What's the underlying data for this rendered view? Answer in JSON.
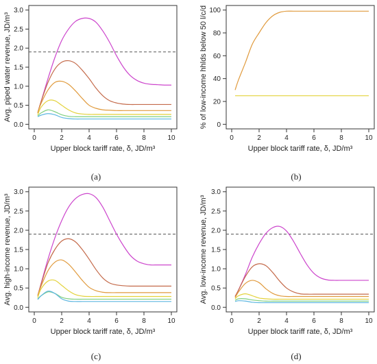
{
  "chart_data": [
    {
      "panel": "a",
      "caption": "(a)",
      "type": "line",
      "xlabel": "Upper block tariff rate, δ, JD/m³",
      "ylabel": "Avg. piped water revenue, JD/m³",
      "xlim": [
        0,
        10
      ],
      "ylim": [
        0,
        3.0
      ],
      "xticks": [
        "0",
        "2",
        "4",
        "6",
        "8",
        "10"
      ],
      "yticks": [
        "0.0",
        "0.5",
        "1.0",
        "1.5",
        "2.0",
        "2.5",
        "3.0"
      ],
      "reference_line": 1.9,
      "x": [
        0.25,
        0.5,
        1,
        1.5,
        2,
        2.5,
        3,
        3.5,
        4,
        4.5,
        5,
        5.5,
        6,
        6.5,
        7,
        7.5,
        8,
        8.5,
        9,
        9.5,
        10
      ],
      "series": [
        {
          "color": "#cc44cc",
          "values": [
            0.3,
            0.6,
            1.2,
            1.75,
            2.2,
            2.5,
            2.7,
            2.78,
            2.78,
            2.68,
            2.45,
            2.15,
            1.8,
            1.5,
            1.28,
            1.15,
            1.08,
            1.05,
            1.04,
            1.03,
            1.03
          ]
        },
        {
          "color": "#c46a4a",
          "values": [
            0.3,
            0.6,
            1.1,
            1.45,
            1.63,
            1.67,
            1.6,
            1.42,
            1.2,
            0.95,
            0.75,
            0.62,
            0.56,
            0.53,
            0.52,
            0.52,
            0.52,
            0.52,
            0.52,
            0.52,
            0.52
          ]
        },
        {
          "color": "#e09a3c",
          "values": [
            0.3,
            0.55,
            0.9,
            1.1,
            1.13,
            1.05,
            0.88,
            0.68,
            0.5,
            0.42,
            0.38,
            0.37,
            0.36,
            0.36,
            0.36,
            0.36,
            0.36,
            0.36,
            0.36,
            0.36,
            0.36
          ]
        },
        {
          "color": "#e3d23a",
          "values": [
            0.25,
            0.45,
            0.62,
            0.62,
            0.5,
            0.38,
            0.3,
            0.27,
            0.26,
            0.26,
            0.26,
            0.26,
            0.26,
            0.26,
            0.26,
            0.26,
            0.26,
            0.26,
            0.26,
            0.26,
            0.26
          ]
        },
        {
          "color": "#7fcf7f",
          "values": [
            0.22,
            0.3,
            0.38,
            0.33,
            0.25,
            0.21,
            0.2,
            0.2,
            0.2,
            0.2,
            0.2,
            0.2,
            0.2,
            0.2,
            0.2,
            0.2,
            0.2,
            0.2,
            0.2,
            0.2,
            0.2
          ]
        },
        {
          "color": "#5cb6e0",
          "values": [
            0.2,
            0.24,
            0.28,
            0.25,
            0.18,
            0.15,
            0.14,
            0.14,
            0.14,
            0.14,
            0.14,
            0.14,
            0.14,
            0.14,
            0.14,
            0.14,
            0.14,
            0.14,
            0.14,
            0.14,
            0.14
          ]
        }
      ]
    },
    {
      "panel": "b",
      "caption": "(b)",
      "type": "line",
      "xlabel": "Upper block tariff rate, δ, JD/m³",
      "ylabel": "% of low-income hhlds below 50 l/c/d",
      "xlim": [
        0,
        10
      ],
      "ylim": [
        0,
        100
      ],
      "xticks": [
        "0",
        "2",
        "4",
        "6",
        "8",
        "10"
      ],
      "yticks": [
        "0",
        "20",
        "40",
        "60",
        "80",
        "100"
      ],
      "x": [
        0.25,
        0.5,
        1,
        1.5,
        2,
        2.5,
        3,
        3.5,
        4,
        4.5,
        5,
        6,
        7,
        8,
        9,
        10
      ],
      "series": [
        {
          "color": "#e09a3c",
          "values": [
            30,
            39,
            54,
            70,
            80,
            89,
            95,
            98,
            99,
            99,
            99,
            99,
            99,
            99,
            99,
            99
          ]
        },
        {
          "color": "#e3d23a",
          "values": [
            25,
            25,
            25,
            25,
            25,
            25,
            25,
            25,
            25,
            25,
            25,
            25,
            25,
            25,
            25,
            25
          ]
        }
      ]
    },
    {
      "panel": "c",
      "caption": "(c)",
      "type": "line",
      "xlabel": "Upper block tariff rate, δ, JD/m³",
      "ylabel": "Avg. high-income revenue, JD/m³",
      "xlim": [
        0,
        10
      ],
      "ylim": [
        0,
        3.0
      ],
      "xticks": [
        "0",
        "2",
        "4",
        "6",
        "8",
        "10"
      ],
      "yticks": [
        "0.0",
        "0.5",
        "1.0",
        "1.5",
        "2.0",
        "2.5",
        "3.0"
      ],
      "reference_line": 1.9,
      "x": [
        0.25,
        0.5,
        1,
        1.5,
        2,
        2.5,
        3,
        3.5,
        4,
        4.5,
        5,
        5.5,
        6,
        6.5,
        7,
        7.5,
        8,
        8.5,
        9,
        9.5,
        10
      ],
      "series": [
        {
          "color": "#cc44cc",
          "values": [
            0.3,
            0.62,
            1.25,
            1.8,
            2.25,
            2.6,
            2.82,
            2.93,
            2.95,
            2.85,
            2.6,
            2.25,
            1.9,
            1.6,
            1.35,
            1.2,
            1.13,
            1.1,
            1.1,
            1.1,
            1.1
          ]
        },
        {
          "color": "#c46a4a",
          "values": [
            0.3,
            0.6,
            1.15,
            1.5,
            1.72,
            1.78,
            1.7,
            1.5,
            1.25,
            0.98,
            0.76,
            0.63,
            0.58,
            0.56,
            0.55,
            0.55,
            0.55,
            0.55,
            0.55,
            0.55,
            0.55
          ]
        },
        {
          "color": "#e09a3c",
          "values": [
            0.3,
            0.55,
            0.95,
            1.17,
            1.23,
            1.12,
            0.92,
            0.7,
            0.52,
            0.43,
            0.39,
            0.38,
            0.38,
            0.38,
            0.38,
            0.38,
            0.38,
            0.38,
            0.38,
            0.38,
            0.38
          ]
        },
        {
          "color": "#e3d23a",
          "values": [
            0.25,
            0.48,
            0.68,
            0.7,
            0.57,
            0.43,
            0.33,
            0.29,
            0.28,
            0.28,
            0.28,
            0.28,
            0.28,
            0.28,
            0.28,
            0.28,
            0.28,
            0.28,
            0.28,
            0.28,
            0.28
          ]
        },
        {
          "color": "#7fcf7f",
          "values": [
            0.22,
            0.3,
            0.4,
            0.36,
            0.26,
            0.22,
            0.21,
            0.21,
            0.21,
            0.21,
            0.21,
            0.21,
            0.21,
            0.21,
            0.21,
            0.21,
            0.21,
            0.21,
            0.21,
            0.21,
            0.21
          ]
        },
        {
          "color": "#5cb6e0",
          "values": [
            0.2,
            0.3,
            0.42,
            0.36,
            0.22,
            0.16,
            0.15,
            0.15,
            0.15,
            0.15,
            0.15,
            0.15,
            0.15,
            0.15,
            0.15,
            0.15,
            0.15,
            0.15,
            0.15,
            0.15,
            0.15
          ]
        }
      ]
    },
    {
      "panel": "d",
      "caption": "(d)",
      "type": "line",
      "xlabel": "Upper block tariff rate, δ, JD/m³",
      "ylabel": "Avg. low-income revenue, JD/m³",
      "xlim": [
        0,
        10
      ],
      "ylim": [
        0,
        3.0
      ],
      "xticks": [
        "0",
        "2",
        "4",
        "6",
        "8",
        "10"
      ],
      "yticks": [
        "0.0",
        "0.5",
        "1.0",
        "1.5",
        "2.0",
        "2.5",
        "3.0"
      ],
      "reference_line": 1.9,
      "x": [
        0.25,
        0.5,
        1,
        1.5,
        2,
        2.5,
        3,
        3.5,
        4,
        4.5,
        5,
        5.5,
        6,
        6.5,
        7,
        7.5,
        8,
        8.5,
        9,
        9.5,
        10
      ],
      "series": [
        {
          "color": "#cc44cc",
          "values": [
            0.28,
            0.45,
            0.85,
            1.3,
            1.65,
            1.92,
            2.07,
            2.1,
            1.98,
            1.72,
            1.4,
            1.1,
            0.88,
            0.76,
            0.71,
            0.7,
            0.7,
            0.7,
            0.7,
            0.7,
            0.7
          ]
        },
        {
          "color": "#c46a4a",
          "values": [
            0.28,
            0.45,
            0.8,
            1.05,
            1.13,
            1.08,
            0.9,
            0.68,
            0.5,
            0.4,
            0.35,
            0.34,
            0.34,
            0.34,
            0.34,
            0.34,
            0.34,
            0.34,
            0.34,
            0.34,
            0.34
          ]
        },
        {
          "color": "#e09a3c",
          "values": [
            0.25,
            0.4,
            0.62,
            0.7,
            0.64,
            0.48,
            0.36,
            0.3,
            0.28,
            0.28,
            0.28,
            0.28,
            0.28,
            0.28,
            0.28,
            0.28,
            0.28,
            0.28,
            0.28,
            0.28,
            0.28
          ]
        },
        {
          "color": "#e3d23a",
          "values": [
            0.22,
            0.3,
            0.35,
            0.3,
            0.24,
            0.22,
            0.21,
            0.21,
            0.21,
            0.21,
            0.21,
            0.21,
            0.21,
            0.21,
            0.21,
            0.21,
            0.21,
            0.21,
            0.21,
            0.21,
            0.21
          ]
        },
        {
          "color": "#7fcf7f",
          "values": [
            0.18,
            0.22,
            0.22,
            0.19,
            0.17,
            0.16,
            0.16,
            0.16,
            0.16,
            0.16,
            0.16,
            0.16,
            0.16,
            0.16,
            0.16,
            0.16,
            0.16,
            0.16,
            0.16,
            0.16,
            0.16
          ]
        },
        {
          "color": "#5cb6e0",
          "values": [
            0.15,
            0.17,
            0.16,
            0.13,
            0.12,
            0.12,
            0.12,
            0.12,
            0.12,
            0.12,
            0.12,
            0.12,
            0.12,
            0.12,
            0.12,
            0.12,
            0.12,
            0.12,
            0.12,
            0.12,
            0.12
          ]
        }
      ]
    }
  ],
  "colors": {
    "axis": "#333333",
    "frame": "#333333",
    "reference_line": "#555555"
  }
}
